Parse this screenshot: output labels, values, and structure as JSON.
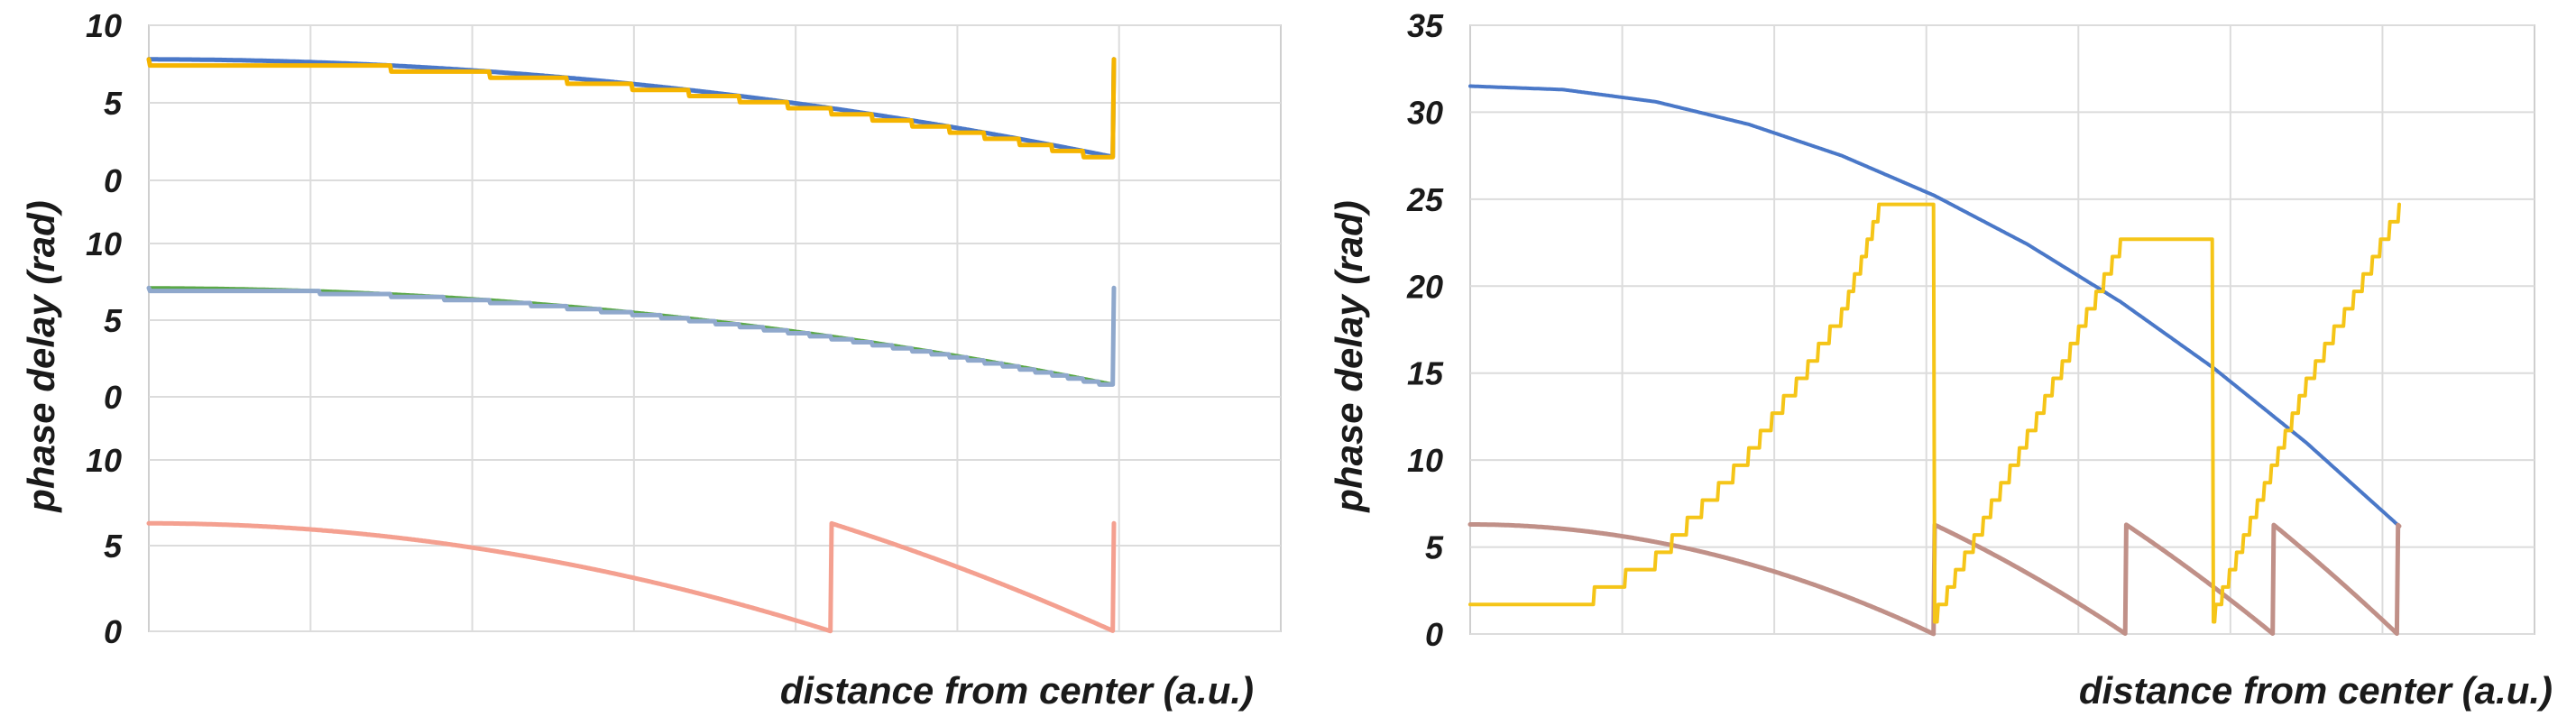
{
  "chart_data": [
    {
      "type": "line",
      "panel": "left",
      "ylabel": "phase delay (rad)",
      "xlabel": "distance from center (a.u.)",
      "subplots": [
        {
          "yticks": [
            "0",
            "5",
            "10"
          ],
          "ylim": [
            0,
            10
          ],
          "series": [
            {
              "color": "#4a78c8",
              "kind": "wrapped",
              "curvature": 6.3,
              "wrap": 6.3,
              "offset": 1.5,
              "width": 5,
              "xs": [
                0,
                0.1,
                0.2,
                0.3,
                0.4,
                0.5,
                0.6,
                0.7,
                0.8,
                0.9,
                1.0
              ],
              "ys": [
                7.8,
                7.74,
                7.55,
                7.23,
                6.79,
                6.23,
                5.53,
                4.71,
                3.77,
                2.7,
                1.5
              ]
            },
            {
              "color": "#f5b400",
              "kind": "wrapped-quantized",
              "curvature": 6.3,
              "wrap": 6.3,
              "offset": 1.5,
              "levels": 16,
              "width": 5,
              "xs": [
                0,
                0.1,
                0.2,
                0.3,
                0.4,
                0.5,
                0.6,
                0.7,
                0.8,
                0.9,
                1.0
              ],
              "ys": [
                7.3,
                7.3,
                7.3,
                6.9,
                6.5,
                6.1,
                5.3,
                4.5,
                3.7,
                2.5,
                1.5
              ]
            }
          ]
        },
        {
          "yticks": [
            "0",
            "5",
            "10"
          ],
          "ylim": [
            0,
            10
          ],
          "series": [
            {
              "color": "#5aa848",
              "kind": "wrapped",
              "curvature": 6.3,
              "wrap": 6.3,
              "offset": 0.8,
              "width": 4,
              "xs": [
                0,
                0.1,
                0.2,
                0.3,
                0.4,
                0.5,
                0.6,
                0.7,
                0.8,
                0.9,
                1.0
              ],
              "ys": [
                7.1,
                7.04,
                6.85,
                6.53,
                6.09,
                5.53,
                4.83,
                4.01,
                3.07,
                2.0,
                0.8
              ]
            },
            {
              "color": "#8fa8cc",
              "kind": "wrapped-quantized",
              "curvature": 6.3,
              "wrap": 6.3,
              "offset": 0.8,
              "levels": 32,
              "width": 5,
              "xs": [
                0,
                0.1,
                0.2,
                0.3,
                0.4,
                0.5,
                0.6,
                0.7,
                0.8,
                0.9,
                1.0
              ],
              "ys": [
                7.0,
                7.0,
                6.8,
                6.5,
                6.1,
                5.5,
                4.8,
                4.0,
                3.1,
                2.0,
                0.8
              ]
            }
          ]
        },
        {
          "yticks": [
            "0",
            "5",
            "10"
          ],
          "ylim": [
            0,
            10
          ],
          "series": [
            {
              "color": "#f4a090",
              "kind": "wrapped",
              "curvature": 12.6,
              "wrap": 6.3,
              "offset": 0.0,
              "width": 5,
              "xs": [
                0,
                0.1,
                0.2,
                0.3,
                0.4,
                0.5,
                0.6,
                0.7,
                0.8,
                0.9,
                1.0
              ],
              "ys": [
                6.3,
                6.17,
                5.8,
                5.17,
                4.28,
                3.15,
                1.76,
                0.13,
                4.8,
                2.1,
                0.0
              ]
            }
          ]
        }
      ]
    },
    {
      "type": "line",
      "panel": "right",
      "ylabel": "phase delay (rad)",
      "xlabel": "distance from center (a.u.)",
      "yticks": [
        "0",
        "5",
        "10",
        "15",
        "20",
        "25",
        "30",
        "35"
      ],
      "ylim": [
        0,
        35
      ],
      "series": [
        {
          "color": "#4a78c8",
          "kind": "smooth",
          "width": 4,
          "xs": [
            0,
            0.1,
            0.2,
            0.3,
            0.4,
            0.5,
            0.6,
            0.7,
            0.8,
            0.9,
            1.0
          ],
          "ys": [
            31.5,
            31.3,
            30.6,
            29.3,
            27.5,
            25.2,
            22.4,
            19.1,
            15.3,
            11.0,
            6.2
          ]
        },
        {
          "color": "#c09088",
          "kind": "wrapped",
          "curvature": 25.3,
          "wrap": 6.3,
          "offset": 0.0,
          "width": 5,
          "xs": [
            0,
            0.1,
            0.2,
            0.3,
            0.4,
            0.5,
            0.6,
            0.7,
            0.8,
            0.9,
            1.0
          ],
          "ys": [
            6.1,
            5.85,
            5.1,
            3.8,
            2.0,
            0.0,
            3.2,
            0.1,
            3.5,
            0.3,
            0.0
          ]
        },
        {
          "color": "#f5c518",
          "kind": "quantized-ramp",
          "wrap": 24,
          "levels": 24,
          "width": 4,
          "xs": [
            0,
            0.1,
            0.2,
            0.3,
            0.4,
            0.44,
            0.5,
            0.6,
            0.7,
            0.8,
            0.9,
            1.0
          ],
          "ys": [
            1.0,
            1.0,
            4.0,
            10.0,
            18.0,
            24.0,
            0.7,
            11.0,
            22.0,
            0.7,
            14.0,
            24.0
          ]
        }
      ]
    }
  ]
}
